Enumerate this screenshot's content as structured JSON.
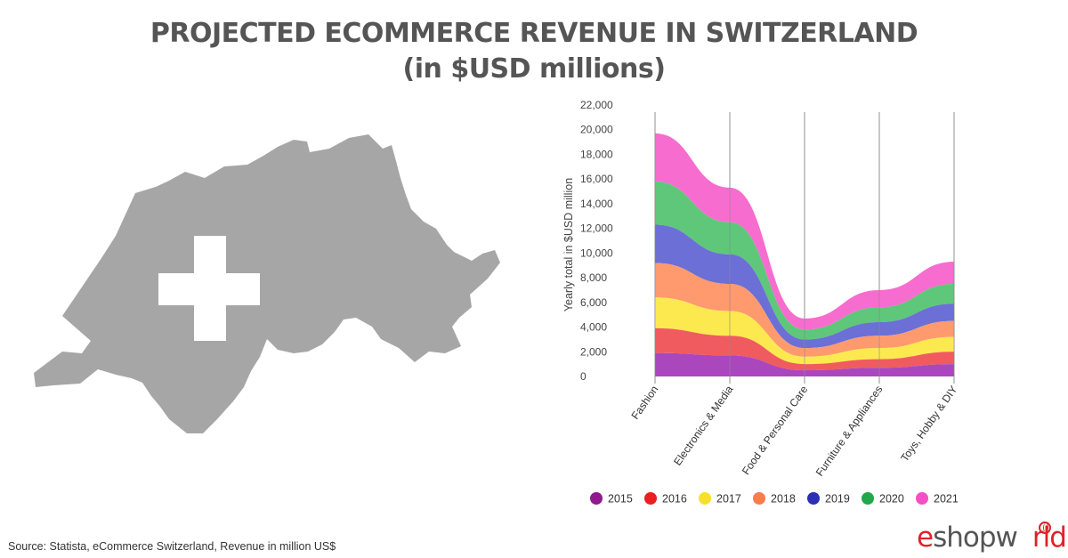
{
  "title_line1": "PROJECTED ECOMMERCE REVENUE IN SWITZERLAND",
  "title_line2": "(in $USD millions)",
  "source": "Source: Statista, eCommerce Switzerland, Revenue in million US$",
  "logo": {
    "part1": "e",
    "part2": "shopw",
    "part3": "rld"
  },
  "map": {
    "fill": "#a6a6a6",
    "cross": "#ffffff"
  },
  "chart_data": {
    "type": "area",
    "stacked": true,
    "ylabel": "Yearly total in $USD million",
    "ylim": [
      0,
      22000
    ],
    "yticks": [
      0,
      2000,
      4000,
      6000,
      8000,
      10000,
      12000,
      14000,
      16000,
      18000,
      20000,
      22000
    ],
    "ytick_labels": [
      "0",
      "2,000",
      "4,000",
      "6,000",
      "8,000",
      "10,000",
      "12,000",
      "14,000",
      "16,000",
      "18,000",
      "20,000",
      "22,000"
    ],
    "categories": [
      "Fashion",
      "Electronics & Media",
      "Food & Personal Care",
      "Furniture & Appliances",
      "Toys, Hobby & DIY"
    ],
    "legend_position": "bottom",
    "series": [
      {
        "name": "2015",
        "color": "#ab47bc",
        "legend_color": "#8e1a8e",
        "values": [
          1900,
          1700,
          500,
          700,
          1000
        ]
      },
      {
        "name": "2016",
        "color": "#f05b5f",
        "legend_color": "#e82020",
        "values": [
          2000,
          1600,
          500,
          700,
          1000
        ]
      },
      {
        "name": "2017",
        "color": "#fce94f",
        "legend_color": "#f5e12a",
        "values": [
          2500,
          2000,
          600,
          900,
          1200
        ]
      },
      {
        "name": "2018",
        "color": "#ff9a6e",
        "legend_color": "#f97c4c",
        "values": [
          2800,
          2200,
          700,
          1000,
          1300
        ]
      },
      {
        "name": "2019",
        "color": "#6b6fd6",
        "legend_color": "#2a2fb5",
        "values": [
          3100,
          2400,
          700,
          1100,
          1400
        ]
      },
      {
        "name": "2020",
        "color": "#5ec77a",
        "legend_color": "#22a84a",
        "values": [
          3500,
          2600,
          800,
          1200,
          1600
        ]
      },
      {
        "name": "2021",
        "color": "#f76ccf",
        "legend_color": "#f54fc6",
        "values": [
          3900,
          2800,
          900,
          1400,
          1800
        ]
      }
    ]
  }
}
